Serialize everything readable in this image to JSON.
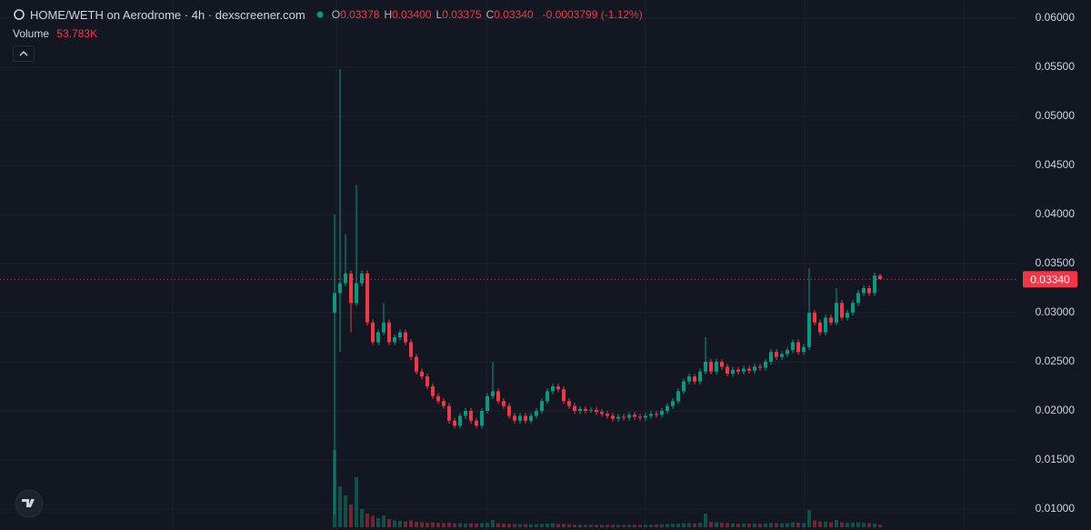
{
  "chart_data": {
    "type": "candlestick",
    "title": "HOME/WETH on Aerodrome · 4h · dexscreener.com",
    "legend_ohlc": [
      {
        "letter": "O",
        "value": 0.03378,
        "label": "0.03378"
      },
      {
        "letter": "H",
        "value": 0.034,
        "label": "0.03400"
      },
      {
        "letter": "L",
        "value": 0.03375,
        "label": "0.03375"
      },
      {
        "letter": "C",
        "value": 0.0334,
        "label": "0.03340"
      }
    ],
    "change_label": "-0.0003799 (-1.12%)",
    "volume_title": "Volume",
    "volume_last_label": "53.783K",
    "up_color": "#089981",
    "down_color": "#f23645",
    "grid": true,
    "ylim": [
      0.00787,
      0.06185
    ],
    "yticks": [
      {
        "value": 0.01,
        "label": "0.01000"
      },
      {
        "value": 0.015,
        "label": "0.01500"
      },
      {
        "value": 0.02,
        "label": "0.02000"
      },
      {
        "value": 0.025,
        "label": "0.02500"
      },
      {
        "value": 0.03,
        "label": "0.03000"
      },
      {
        "value": 0.035,
        "label": "0.03500"
      },
      {
        "value": 0.04,
        "label": "0.04000"
      },
      {
        "value": 0.045,
        "label": "0.04500"
      },
      {
        "value": 0.05,
        "label": "0.05000"
      },
      {
        "value": 0.055,
        "label": "0.05500"
      },
      {
        "value": 0.06,
        "label": "0.06000"
      }
    ],
    "last_price": {
      "value": 0.0334,
      "label": "0.03340"
    },
    "volume_ylim": [
      0,
      2000000
    ],
    "open": [
      0.03,
      0.032,
      0.033,
      0.034,
      0.031,
      0.033,
      0.034,
      0.029,
      0.027,
      0.028,
      0.029,
      0.027,
      0.0275,
      0.028,
      0.027,
      0.0255,
      0.024,
      0.0235,
      0.0225,
      0.0215,
      0.021,
      0.0205,
      0.019,
      0.0185,
      0.0195,
      0.02,
      0.019,
      0.0185,
      0.02,
      0.0215,
      0.022,
      0.021,
      0.0205,
      0.0195,
      0.019,
      0.0195,
      0.019,
      0.0195,
      0.02,
      0.021,
      0.022,
      0.0225,
      0.0222,
      0.021,
      0.0205,
      0.02,
      0.0202,
      0.02,
      0.0201,
      0.0199,
      0.0197,
      0.0195,
      0.0192,
      0.0194,
      0.0193,
      0.0196,
      0.0194,
      0.0193,
      0.0195,
      0.0197,
      0.0196,
      0.02,
      0.0205,
      0.021,
      0.022,
      0.023,
      0.0235,
      0.023,
      0.024,
      0.025,
      0.024,
      0.025,
      0.0245,
      0.0238,
      0.0242,
      0.024,
      0.0243,
      0.0241,
      0.0245,
      0.0244,
      0.025,
      0.026,
      0.0255,
      0.0258,
      0.0262,
      0.027,
      0.026,
      0.0265,
      0.03,
      0.029,
      0.028,
      0.0295,
      0.029,
      0.031,
      0.0295,
      0.03,
      0.031,
      0.032,
      0.0325,
      0.032,
      0.03378
    ],
    "high": [
      0.04,
      0.0548,
      0.038,
      0.0343,
      0.043,
      0.0343,
      0.0343,
      0.0293,
      0.0283,
      0.031,
      0.0293,
      0.0278,
      0.0283,
      0.0283,
      0.0273,
      0.0258,
      0.0243,
      0.0238,
      0.0228,
      0.0218,
      0.0213,
      0.0208,
      0.0193,
      0.0198,
      0.0203,
      0.0203,
      0.0193,
      0.0203,
      0.0218,
      0.025,
      0.0223,
      0.0213,
      0.0208,
      0.0198,
      0.0198,
      0.0198,
      0.0198,
      0.0203,
      0.0213,
      0.0223,
      0.0228,
      0.0228,
      0.0225,
      0.0213,
      0.0208,
      0.0205,
      0.0205,
      0.0204,
      0.0204,
      0.0202,
      0.02,
      0.0198,
      0.0197,
      0.0197,
      0.0199,
      0.0199,
      0.0197,
      0.0198,
      0.02,
      0.02,
      0.0203,
      0.0208,
      0.0213,
      0.0223,
      0.0233,
      0.0238,
      0.0238,
      0.0243,
      0.0275,
      0.0253,
      0.0253,
      0.0253,
      0.0248,
      0.0245,
      0.0245,
      0.0246,
      0.0246,
      0.0248,
      0.0248,
      0.0253,
      0.0263,
      0.0263,
      0.0261,
      0.0265,
      0.0273,
      0.0273,
      0.0268,
      0.0345,
      0.0303,
      0.0293,
      0.0298,
      0.0298,
      0.0325,
      0.0313,
      0.0303,
      0.0313,
      0.0323,
      0.0328,
      0.0328,
      0.0341,
      0.034
    ],
    "low": [
      0.0095,
      0.026,
      0.0327,
      0.028,
      0.0307,
      0.0327,
      0.0287,
      0.0267,
      0.0267,
      0.0277,
      0.0267,
      0.0267,
      0.0272,
      0.0267,
      0.0252,
      0.0237,
      0.0232,
      0.0222,
      0.0212,
      0.0207,
      0.0202,
      0.0187,
      0.0182,
      0.0182,
      0.0192,
      0.0187,
      0.0182,
      0.0182,
      0.0197,
      0.0212,
      0.0207,
      0.0202,
      0.0192,
      0.0187,
      0.0187,
      0.0187,
      0.0187,
      0.0192,
      0.0197,
      0.0207,
      0.0217,
      0.0219,
      0.0207,
      0.0202,
      0.0197,
      0.0197,
      0.0197,
      0.0198,
      0.0196,
      0.0194,
      0.0192,
      0.0189,
      0.0189,
      0.019,
      0.019,
      0.0191,
      0.019,
      0.019,
      0.0192,
      0.0193,
      0.0193,
      0.0197,
      0.0202,
      0.0207,
      0.0217,
      0.0227,
      0.0227,
      0.0227,
      0.0237,
      0.0237,
      0.0237,
      0.0242,
      0.0235,
      0.0235,
      0.0237,
      0.0237,
      0.0238,
      0.0238,
      0.0241,
      0.0241,
      0.0247,
      0.0252,
      0.0252,
      0.0255,
      0.0259,
      0.0257,
      0.0257,
      0.0262,
      0.0287,
      0.0277,
      0.0277,
      0.0287,
      0.0287,
      0.0292,
      0.0292,
      0.0297,
      0.0307,
      0.0317,
      0.0317,
      0.0317,
      0.03375
    ],
    "close": [
      0.032,
      0.033,
      0.034,
      0.031,
      0.033,
      0.034,
      0.029,
      0.027,
      0.028,
      0.029,
      0.027,
      0.0275,
      0.028,
      0.027,
      0.0255,
      0.024,
      0.0235,
      0.0225,
      0.0215,
      0.021,
      0.0205,
      0.019,
      0.0185,
      0.0195,
      0.02,
      0.019,
      0.0185,
      0.02,
      0.0215,
      0.022,
      0.021,
      0.0205,
      0.0195,
      0.019,
      0.0195,
      0.019,
      0.0195,
      0.02,
      0.021,
      0.022,
      0.0225,
      0.0222,
      0.021,
      0.0205,
      0.02,
      0.0202,
      0.02,
      0.0201,
      0.0199,
      0.0197,
      0.0195,
      0.0192,
      0.0194,
      0.0193,
      0.0196,
      0.0194,
      0.0193,
      0.0195,
      0.0197,
      0.0196,
      0.02,
      0.0205,
      0.021,
      0.022,
      0.023,
      0.0235,
      0.023,
      0.024,
      0.025,
      0.024,
      0.025,
      0.0245,
      0.0238,
      0.0242,
      0.024,
      0.0243,
      0.0241,
      0.0245,
      0.0244,
      0.025,
      0.026,
      0.0255,
      0.0258,
      0.0262,
      0.027,
      0.026,
      0.0265,
      0.03,
      0.029,
      0.028,
      0.0295,
      0.029,
      0.031,
      0.0295,
      0.03,
      0.031,
      0.032,
      0.0325,
      0.032,
      0.03378,
      0.0334
    ],
    "volume": [
      1700000,
      900000,
      700000,
      500000,
      1100000,
      400000,
      300000,
      250000,
      200000,
      260000,
      180000,
      150000,
      140000,
      130000,
      150000,
      120000,
      110000,
      100000,
      110000,
      95000,
      90000,
      100000,
      85000,
      90000,
      80000,
      85000,
      80000,
      90000,
      95000,
      160000,
      85000,
      80000,
      75000,
      70000,
      72000,
      70000,
      68000,
      70000,
      75000,
      80000,
      85000,
      70000,
      72000,
      65000,
      60000,
      58000,
      55000,
      56000,
      54000,
      52000,
      55000,
      50000,
      52000,
      50000,
      54000,
      50000,
      52000,
      55000,
      58000,
      60000,
      65000,
      70000,
      75000,
      80000,
      85000,
      90000,
      80000,
      100000,
      300000,
      120000,
      110000,
      100000,
      90000,
      85000,
      80000,
      82000,
      78000,
      80000,
      76000,
      85000,
      95000,
      90000,
      88000,
      92000,
      110000,
      100000,
      95000,
      380000,
      150000,
      130000,
      120000,
      110000,
      160000,
      110000,
      100000,
      105000,
      110000,
      100000,
      95000,
      80000,
      53783
    ]
  }
}
